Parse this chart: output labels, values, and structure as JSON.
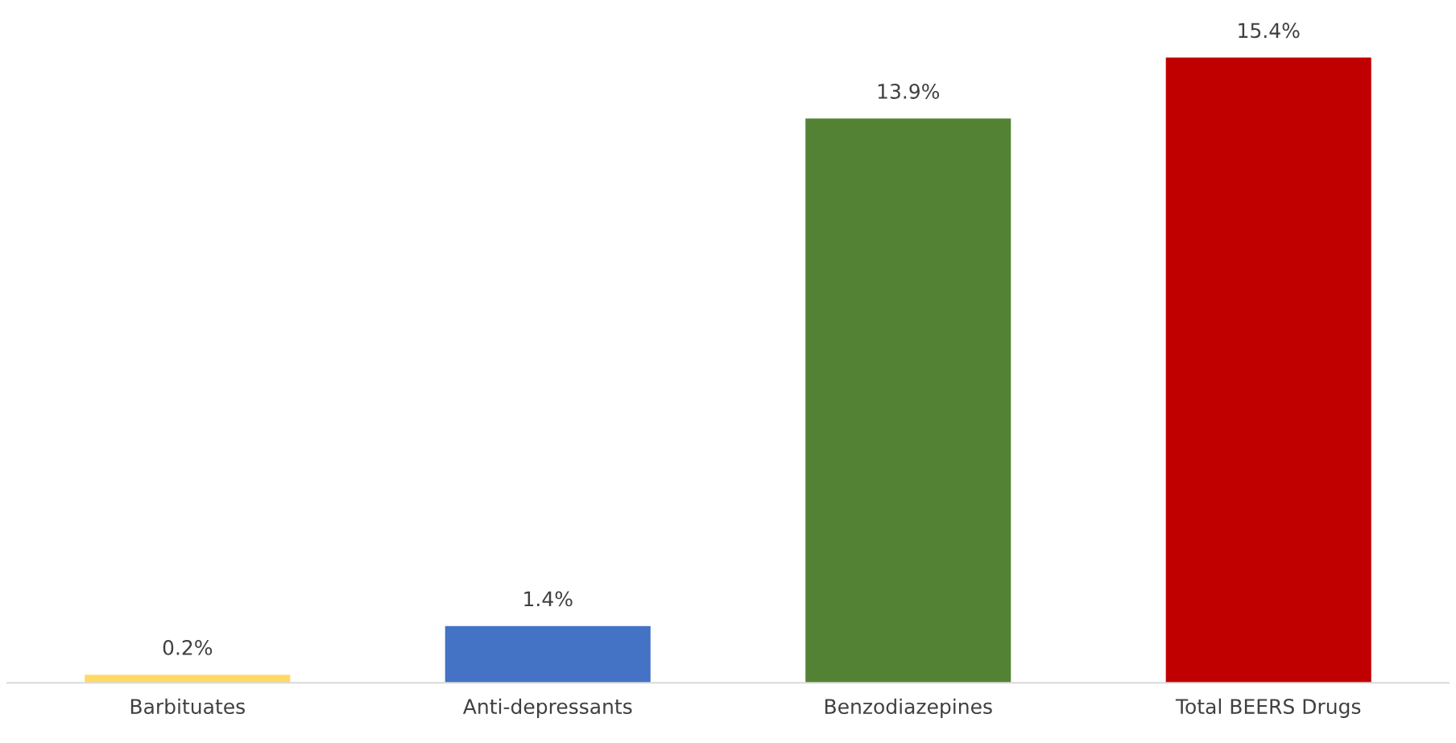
{
  "chart_data": {
    "type": "bar",
    "categories": [
      "Barbituates",
      "Anti-depressants",
      "Benzodiazepines",
      "Total BEERS Drugs"
    ],
    "values": [
      0.2,
      1.4,
      13.9,
      15.4
    ],
    "colors": [
      "#ffd966",
      "#4472c4",
      "#548235",
      "#c00000"
    ],
    "value_labels": [
      "0.2%",
      "1.4%",
      "13.9%",
      "15.4%"
    ],
    "grid": false,
    "legend": false
  }
}
